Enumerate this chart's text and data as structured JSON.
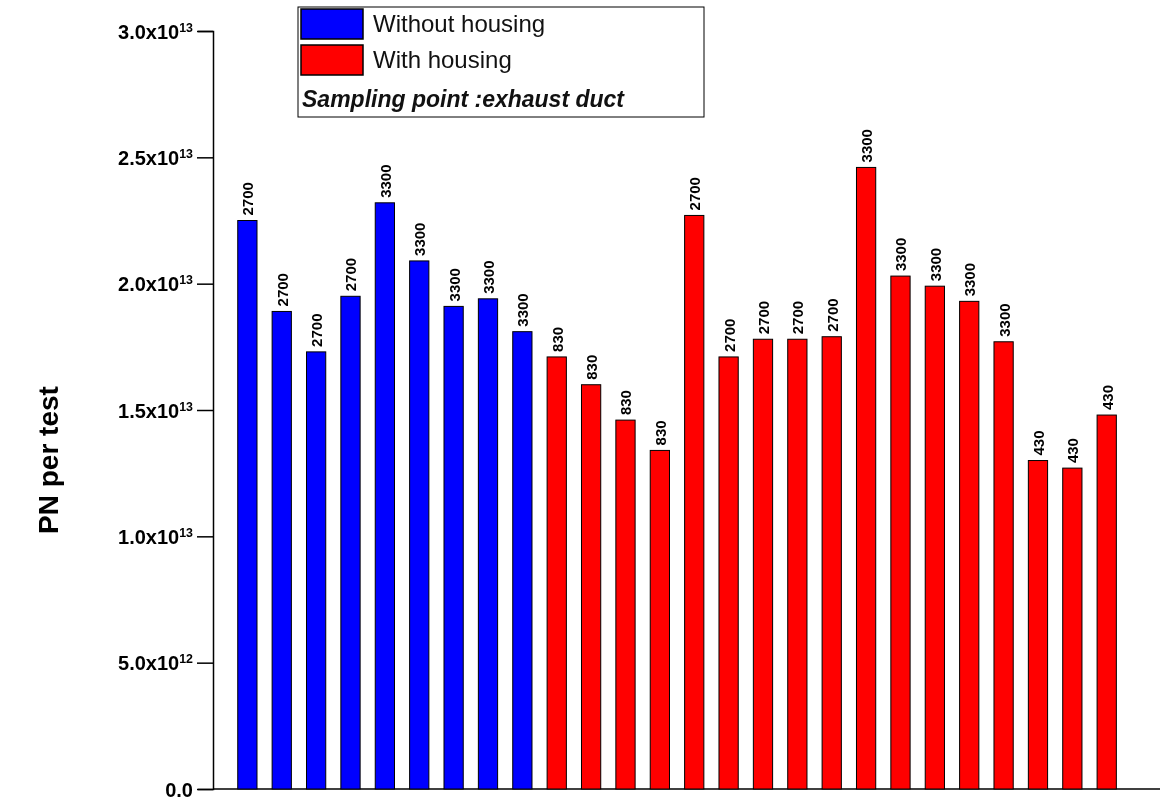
{
  "chart_data": {
    "type": "bar",
    "ylabel": "PN per test",
    "legend_title": "Sampling point :exhaust duct",
    "legend": "top",
    "categories": [
      null,
      null,
      null,
      null,
      null,
      null,
      null,
      null,
      null,
      null,
      null,
      null,
      null,
      null,
      null,
      null,
      null,
      null,
      null,
      null,
      null,
      null,
      null,
      null,
      null,
      null
    ],
    "series": [
      {
        "name": "Without housing",
        "color": "#0000ff",
        "values": [
          22500000000000.0,
          18900000000000.0,
          17300000000000.0,
          19500000000000.0,
          23200000000000.0,
          20900000000000.0,
          19100000000000.0,
          19400000000000.0,
          18100000000000.0,
          null,
          null,
          null,
          null,
          null,
          null,
          null,
          null,
          null,
          null,
          null,
          null,
          null,
          null,
          null,
          null,
          null
        ]
      },
      {
        "name": "With housing",
        "color": "#ff0000",
        "values": [
          null,
          null,
          null,
          null,
          null,
          null,
          null,
          null,
          null,
          17100000000000.0,
          16000000000000.0,
          14600000000000.0,
          13400000000000.0,
          22700000000000.0,
          17100000000000.0,
          17800000000000.0,
          17800000000000.0,
          17900000000000.0,
          24600000000000.0,
          20300000000000.0,
          19900000000000.0,
          19300000000000.0,
          17700000000000.0,
          13000000000000.0,
          12700000000000.0,
          14800000000000.0
        ]
      }
    ],
    "annotations": [
      "2700",
      "2700",
      "2700",
      "2700",
      "3300",
      "3300",
      "3300",
      "3300",
      "3300",
      "830",
      "830",
      "830",
      "830",
      "2700",
      "2700",
      "2700",
      "2700",
      "2700",
      "3300",
      "3300",
      "3300",
      "3300",
      "3300",
      "430",
      "430",
      "430"
    ],
    "ylim": [
      0,
      30000000000000.0
    ],
    "yticks": [
      {
        "value": 0,
        "label": "0.0"
      },
      {
        "value": 5000000000000.0,
        "label": "5.0x10$^{12}$"
      },
      {
        "value": 10000000000000.0,
        "label": "1.0x10$^{13}$"
      },
      {
        "value": 15000000000000.0,
        "label": "1.5x10$^{13}$"
      },
      {
        "value": 20000000000000.0,
        "label": "2.0x10$^{13}$"
      },
      {
        "value": 25000000000000.0,
        "label": "2.5x10$^{13}$"
      },
      {
        "value": 30000000000000.0,
        "label": "3.0x10$^{13}$"
      }
    ],
    "grid": false,
    "stacked": true
  }
}
